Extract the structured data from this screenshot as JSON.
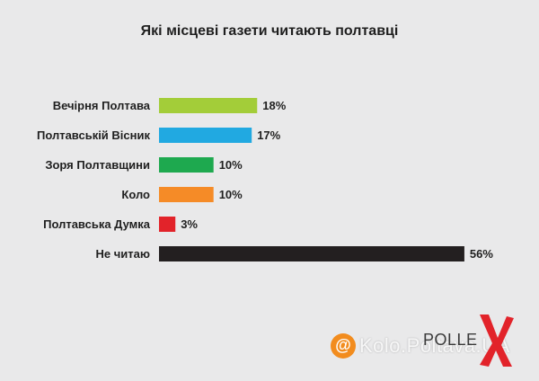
{
  "chart_data": {
    "type": "bar",
    "orientation": "horizontal",
    "title": "Які місцеві газети читають полтавці",
    "categories": [
      "Вечірня Полтава",
      "Полтавській Вісник",
      "Зоря Полтавщини",
      "Коло",
      "Полтавська Думка",
      "Не читаю"
    ],
    "values": [
      18,
      17,
      10,
      10,
      3,
      56
    ],
    "value_labels": [
      "18%",
      "17%",
      "10%",
      "10%",
      "3%",
      "56%"
    ],
    "colors": [
      "#a3cd39",
      "#21a9e1",
      "#1ea94f",
      "#f58b27",
      "#e2232a",
      "#231f20"
    ],
    "grid": false,
    "legend": "none"
  },
  "branding": {
    "logo_text": "POLLE",
    "logo_x_color": "#e2232a",
    "watermark_text": "Kolo.Poltava.UA",
    "watermark_icon": "at-icon",
    "watermark_icon_glyph": "@",
    "watermark_icon_color": "#f28c1e"
  }
}
